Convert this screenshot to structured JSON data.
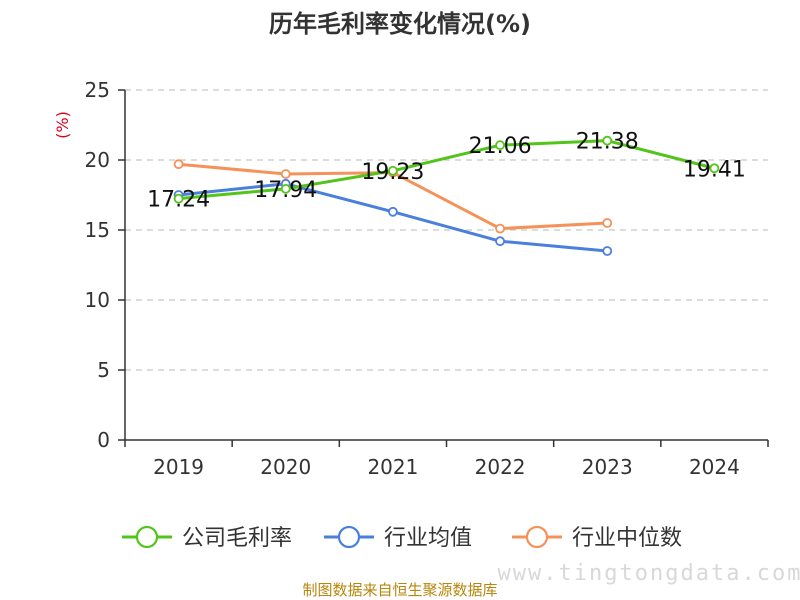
{
  "chart_data": {
    "type": "line",
    "title": "历年毛利率变化情况(%)",
    "ylabel": "(%)",
    "xlabel": "",
    "categories": [
      "2019",
      "2020",
      "2021",
      "2022",
      "2023",
      "2024"
    ],
    "ylim": [
      0,
      25
    ],
    "yticks": [
      0,
      5,
      10,
      15,
      20,
      25
    ],
    "grid": true,
    "legend_position": "bottom",
    "series": [
      {
        "name": "公司毛利率",
        "color": "#52c41a",
        "values": [
          17.24,
          17.94,
          19.23,
          21.06,
          21.38,
          19.41
        ],
        "show_labels": true
      },
      {
        "name": "行业均值",
        "color": "#4a7fdc",
        "values": [
          17.5,
          18.3,
          16.3,
          14.2,
          13.5,
          null
        ],
        "show_labels": false
      },
      {
        "name": "行业中位数",
        "color": "#f5925a",
        "values": [
          19.7,
          19.0,
          19.1,
          15.1,
          15.5,
          null
        ],
        "show_labels": false
      }
    ]
  },
  "watermark": "www.tingtongdata.com",
  "source": "制图数据来自恒生聚源数据库"
}
